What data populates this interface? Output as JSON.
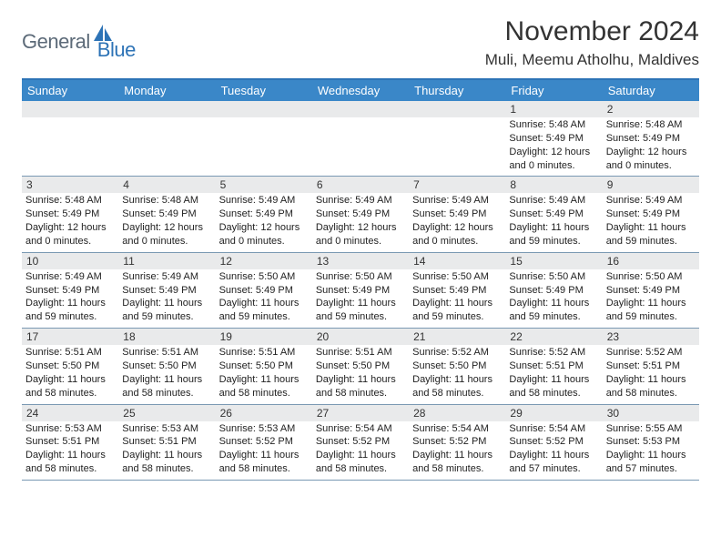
{
  "logo": {
    "text1": "General",
    "text2": "Blue",
    "color1": "#5c6a78",
    "color2": "#2d73b6"
  },
  "title": "November 2024",
  "location": "Muli, Meemu Atholhu, Maldives",
  "header_bg": "#3a87c8",
  "header_border": "#2d73b6",
  "row_border": "#7a99b3",
  "daynum_bg": "#e9eaeb",
  "weekdays": [
    "Sunday",
    "Monday",
    "Tuesday",
    "Wednesday",
    "Thursday",
    "Friday",
    "Saturday"
  ],
  "weeks": [
    [
      null,
      null,
      null,
      null,
      null,
      {
        "n": "1",
        "sr": "Sunrise: 5:48 AM",
        "ss": "Sunset: 5:49 PM",
        "dl": "Daylight: 12 hours and 0 minutes."
      },
      {
        "n": "2",
        "sr": "Sunrise: 5:48 AM",
        "ss": "Sunset: 5:49 PM",
        "dl": "Daylight: 12 hours and 0 minutes."
      }
    ],
    [
      {
        "n": "3",
        "sr": "Sunrise: 5:48 AM",
        "ss": "Sunset: 5:49 PM",
        "dl": "Daylight: 12 hours and 0 minutes."
      },
      {
        "n": "4",
        "sr": "Sunrise: 5:48 AM",
        "ss": "Sunset: 5:49 PM",
        "dl": "Daylight: 12 hours and 0 minutes."
      },
      {
        "n": "5",
        "sr": "Sunrise: 5:49 AM",
        "ss": "Sunset: 5:49 PM",
        "dl": "Daylight: 12 hours and 0 minutes."
      },
      {
        "n": "6",
        "sr": "Sunrise: 5:49 AM",
        "ss": "Sunset: 5:49 PM",
        "dl": "Daylight: 12 hours and 0 minutes."
      },
      {
        "n": "7",
        "sr": "Sunrise: 5:49 AM",
        "ss": "Sunset: 5:49 PM",
        "dl": "Daylight: 12 hours and 0 minutes."
      },
      {
        "n": "8",
        "sr": "Sunrise: 5:49 AM",
        "ss": "Sunset: 5:49 PM",
        "dl": "Daylight: 11 hours and 59 minutes."
      },
      {
        "n": "9",
        "sr": "Sunrise: 5:49 AM",
        "ss": "Sunset: 5:49 PM",
        "dl": "Daylight: 11 hours and 59 minutes."
      }
    ],
    [
      {
        "n": "10",
        "sr": "Sunrise: 5:49 AM",
        "ss": "Sunset: 5:49 PM",
        "dl": "Daylight: 11 hours and 59 minutes."
      },
      {
        "n": "11",
        "sr": "Sunrise: 5:49 AM",
        "ss": "Sunset: 5:49 PM",
        "dl": "Daylight: 11 hours and 59 minutes."
      },
      {
        "n": "12",
        "sr": "Sunrise: 5:50 AM",
        "ss": "Sunset: 5:49 PM",
        "dl": "Daylight: 11 hours and 59 minutes."
      },
      {
        "n": "13",
        "sr": "Sunrise: 5:50 AM",
        "ss": "Sunset: 5:49 PM",
        "dl": "Daylight: 11 hours and 59 minutes."
      },
      {
        "n": "14",
        "sr": "Sunrise: 5:50 AM",
        "ss": "Sunset: 5:49 PM",
        "dl": "Daylight: 11 hours and 59 minutes."
      },
      {
        "n": "15",
        "sr": "Sunrise: 5:50 AM",
        "ss": "Sunset: 5:49 PM",
        "dl": "Daylight: 11 hours and 59 minutes."
      },
      {
        "n": "16",
        "sr": "Sunrise: 5:50 AM",
        "ss": "Sunset: 5:49 PM",
        "dl": "Daylight: 11 hours and 59 minutes."
      }
    ],
    [
      {
        "n": "17",
        "sr": "Sunrise: 5:51 AM",
        "ss": "Sunset: 5:50 PM",
        "dl": "Daylight: 11 hours and 58 minutes."
      },
      {
        "n": "18",
        "sr": "Sunrise: 5:51 AM",
        "ss": "Sunset: 5:50 PM",
        "dl": "Daylight: 11 hours and 58 minutes."
      },
      {
        "n": "19",
        "sr": "Sunrise: 5:51 AM",
        "ss": "Sunset: 5:50 PM",
        "dl": "Daylight: 11 hours and 58 minutes."
      },
      {
        "n": "20",
        "sr": "Sunrise: 5:51 AM",
        "ss": "Sunset: 5:50 PM",
        "dl": "Daylight: 11 hours and 58 minutes."
      },
      {
        "n": "21",
        "sr": "Sunrise: 5:52 AM",
        "ss": "Sunset: 5:50 PM",
        "dl": "Daylight: 11 hours and 58 minutes."
      },
      {
        "n": "22",
        "sr": "Sunrise: 5:52 AM",
        "ss": "Sunset: 5:51 PM",
        "dl": "Daylight: 11 hours and 58 minutes."
      },
      {
        "n": "23",
        "sr": "Sunrise: 5:52 AM",
        "ss": "Sunset: 5:51 PM",
        "dl": "Daylight: 11 hours and 58 minutes."
      }
    ],
    [
      {
        "n": "24",
        "sr": "Sunrise: 5:53 AM",
        "ss": "Sunset: 5:51 PM",
        "dl": "Daylight: 11 hours and 58 minutes."
      },
      {
        "n": "25",
        "sr": "Sunrise: 5:53 AM",
        "ss": "Sunset: 5:51 PM",
        "dl": "Daylight: 11 hours and 58 minutes."
      },
      {
        "n": "26",
        "sr": "Sunrise: 5:53 AM",
        "ss": "Sunset: 5:52 PM",
        "dl": "Daylight: 11 hours and 58 minutes."
      },
      {
        "n": "27",
        "sr": "Sunrise: 5:54 AM",
        "ss": "Sunset: 5:52 PM",
        "dl": "Daylight: 11 hours and 58 minutes."
      },
      {
        "n": "28",
        "sr": "Sunrise: 5:54 AM",
        "ss": "Sunset: 5:52 PM",
        "dl": "Daylight: 11 hours and 58 minutes."
      },
      {
        "n": "29",
        "sr": "Sunrise: 5:54 AM",
        "ss": "Sunset: 5:52 PM",
        "dl": "Daylight: 11 hours and 57 minutes."
      },
      {
        "n": "30",
        "sr": "Sunrise: 5:55 AM",
        "ss": "Sunset: 5:53 PM",
        "dl": "Daylight: 11 hours and 57 minutes."
      }
    ]
  ]
}
